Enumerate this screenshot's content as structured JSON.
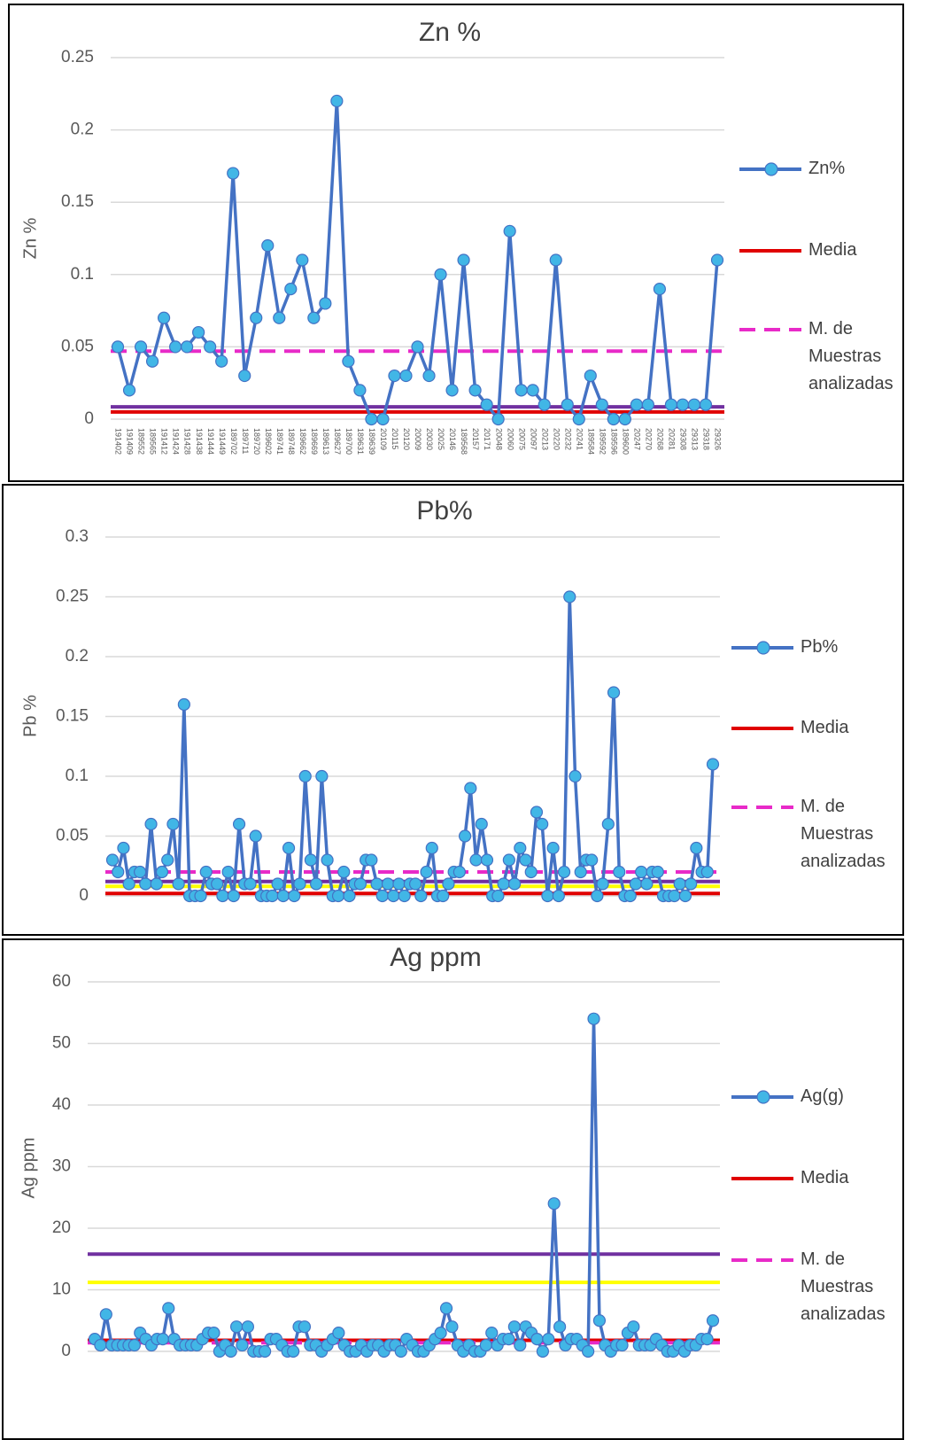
{
  "chart_data": [
    {
      "type": "line",
      "title": "Zn %",
      "y_label": "Zn %",
      "categories": [
        "191402",
        "191409",
        "189552",
        "189565",
        "191412",
        "191424",
        "191428",
        "191438",
        "191444",
        "191449",
        "189702",
        "189711",
        "189720",
        "189602",
        "189741",
        "189748",
        "189662",
        "189669",
        "189613",
        "189627",
        "189700",
        "189631",
        "189639",
        "20109",
        "20115",
        "20120",
        "20009",
        "20030",
        "20025",
        "20146",
        "189568",
        "20157",
        "20171",
        "20048",
        "20060",
        "20075",
        "20097",
        "20213",
        "20220",
        "20232",
        "20241",
        "189584",
        "189592",
        "189596",
        "189600",
        "20247",
        "20270",
        "20268",
        "20281",
        "29308",
        "29313",
        "29318",
        "29326"
      ],
      "series": [
        {
          "name": "Zn%",
          "color": "#4472c4",
          "marker_color": "#41b6e6",
          "values": [
            0.05,
            0.02,
            0.05,
            0.04,
            0.07,
            0.05,
            0.05,
            0.06,
            0.05,
            0.04,
            0.17,
            0.03,
            0.07,
            0.12,
            0.07,
            0.09,
            0.11,
            0.07,
            0.08,
            0.22,
            0.04,
            0.02,
            0,
            0,
            0.03,
            0.03,
            0.05,
            0.03,
            0.1,
            0.02,
            0.11,
            0.02,
            0.01,
            0,
            0.13,
            0.02,
            0.02,
            0.01,
            0.11,
            0.01,
            0,
            0.03,
            0.01,
            0,
            0,
            0.01,
            0.01,
            0.09,
            0.01,
            0.01,
            0.01,
            0.01,
            0.11
          ]
        }
      ],
      "reference_lines": [
        {
          "name": "Media",
          "color": "#e00000",
          "value": 0.005
        },
        {
          "name": "M. de Muestras analizadas",
          "color": "#e82ac8",
          "value": 0.047,
          "dashed": true
        },
        {
          "color": "#7030a0",
          "value": 0.0085
        }
      ],
      "ylim": [
        0,
        0.25
      ],
      "yticks": [
        0,
        0.05,
        0.1,
        0.15,
        0.2,
        0.25
      ],
      "grid": true
    },
    {
      "type": "line",
      "title": "Pb%",
      "y_label": "Pb %",
      "series": [
        {
          "name": "Pb%",
          "color": "#4472c4",
          "marker_color": "#41b6e6",
          "values": [
            0.03,
            0.02,
            0.04,
            0.01,
            0.02,
            0.02,
            0.01,
            0.06,
            0.01,
            0.02,
            0.03,
            0.06,
            0.01,
            0.16,
            0,
            0,
            0,
            0.02,
            0.01,
            0.01,
            0,
            0.02,
            0,
            0.06,
            0.01,
            0.01,
            0.05,
            0,
            0,
            0,
            0.01,
            0,
            0.04,
            0,
            0.01,
            0.1,
            0.03,
            0.01,
            0.1,
            0.03,
            0,
            0,
            0.02,
            0,
            0.01,
            0.01,
            0.03,
            0.03,
            0.01,
            0,
            0.01,
            0,
            0.01,
            0,
            0.01,
            0.01,
            0,
            0.02,
            0.04,
            0,
            0,
            0.01,
            0.02,
            0.02,
            0.05,
            0.09,
            0.03,
            0.06,
            0.03,
            0,
            0,
            0.01,
            0.03,
            0.01,
            0.04,
            0.03,
            0.02,
            0.07,
            0.06,
            0,
            0.04,
            0,
            0.02,
            0.25,
            0.1,
            0.02,
            0.03,
            0.03,
            0,
            0.01,
            0.06,
            0.17,
            0.02,
            0,
            0,
            0.01,
            0.02,
            0.01,
            0.02,
            0.02,
            0,
            0,
            0,
            0.01,
            0,
            0.01,
            0.04,
            0.02,
            0.02,
            0.11
          ]
        }
      ],
      "reference_lines": [
        {
          "name": "Media",
          "color": "#e00000",
          "value": 0.002
        },
        {
          "name": "M. de Muestras analizadas",
          "color": "#e82ac8",
          "value": 0.02,
          "dashed": true
        },
        {
          "color": "#7030a0",
          "value": 0.012
        },
        {
          "color": "#ffff00",
          "value": 0.008
        }
      ],
      "ylim": [
        0,
        0.3
      ],
      "yticks": [
        0,
        0.05,
        0.1,
        0.15,
        0.2,
        0.25,
        0.3
      ],
      "grid": true
    },
    {
      "type": "line",
      "title": "Ag ppm",
      "y_label": "Ag  ppm",
      "series": [
        {
          "name": "Ag(g)",
          "color": "#4472c4",
          "marker_color": "#41b6e6",
          "values": [
            2,
            1,
            6,
            1,
            1,
            1,
            1,
            1,
            3,
            2,
            1,
            2,
            2,
            7,
            2,
            1,
            1,
            1,
            1,
            2,
            3,
            3,
            0,
            1,
            0,
            4,
            1,
            4,
            0,
            0,
            0,
            2,
            2,
            1,
            0,
            0,
            4,
            4,
            1,
            1,
            0,
            1,
            2,
            3,
            1,
            0,
            0,
            1,
            0,
            1,
            1,
            0,
            1,
            1,
            0,
            2,
            1,
            0,
            0,
            1,
            2,
            3,
            7,
            4,
            1,
            0,
            1,
            0,
            0,
            1,
            3,
            1,
            2,
            2,
            4,
            1,
            4,
            3,
            2,
            0,
            2,
            24,
            4,
            1,
            2,
            2,
            1,
            0,
            54,
            5,
            1,
            0,
            1,
            1,
            3,
            4,
            1,
            1,
            1,
            2,
            1,
            0,
            0,
            1,
            0,
            1,
            1,
            2,
            2,
            5
          ]
        }
      ],
      "reference_lines": [
        {
          "name": "Media",
          "color": "#e00000",
          "value": 1.8
        },
        {
          "name": "M. de Muestras analizadas",
          "color": "#e82ac8",
          "value": 1.4,
          "dashed": true
        },
        {
          "color": "#7030a0",
          "value": 15.8
        },
        {
          "color": "#ffff00",
          "value": 11.2
        }
      ],
      "ylim": [
        0,
        60
      ],
      "yticks": [
        0,
        10,
        20,
        30,
        40,
        50,
        60
      ],
      "grid": true
    }
  ]
}
